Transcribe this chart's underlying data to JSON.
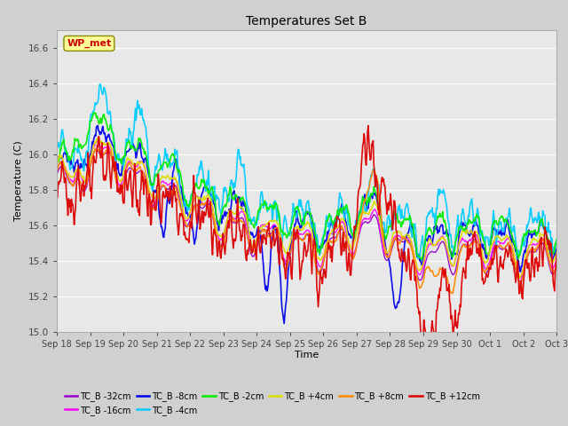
{
  "title": "Temperatures Set B",
  "xlabel": "Time",
  "ylabel": "Temperature (C)",
  "ylim": [
    15.0,
    16.7
  ],
  "yticks": [
    15.0,
    15.2,
    15.4,
    15.6,
    15.8,
    16.0,
    16.2,
    16.4,
    16.6
  ],
  "plot_bg_color": "#e8e8e8",
  "fig_bg_color": "#d0d0d0",
  "wp_met_label": "WP_met",
  "wp_met_color": "#cc0000",
  "wp_met_bg": "#ffff99",
  "series": [
    {
      "label": "TC_B -32cm",
      "color": "#9900cc",
      "lw": 1.0
    },
    {
      "label": "TC_B -16cm",
      "color": "#ff00ff",
      "lw": 1.0
    },
    {
      "label": "TC_B -8cm",
      "color": "#0000ee",
      "lw": 1.2
    },
    {
      "label": "TC_B -4cm",
      "color": "#00ccff",
      "lw": 1.2
    },
    {
      "label": "TC_B -2cm",
      "color": "#00ee00",
      "lw": 1.2
    },
    {
      "label": "TC_B +4cm",
      "color": "#dddd00",
      "lw": 1.2
    },
    {
      "label": "TC_B +8cm",
      "color": "#ff8800",
      "lw": 1.2
    },
    {
      "label": "TC_B +12cm",
      "color": "#dd0000",
      "lw": 1.2
    }
  ],
  "n_points": 720,
  "x_start": 0,
  "x_end": 15,
  "xtick_positions": [
    0,
    1,
    2,
    3,
    4,
    5,
    6,
    7,
    8,
    9,
    10,
    11,
    12,
    13,
    14,
    15
  ],
  "xtick_labels": [
    "Sep 18",
    "Sep 19",
    "Sep 20",
    "Sep 21",
    "Sep 22",
    "Sep 23",
    "Sep 24",
    "Sep 25",
    "Sep 26",
    "Sep 27",
    "Sep 28",
    "Sep 29",
    "Sep 30",
    "Oct 1",
    "Oct 2",
    "Oct 3"
  ]
}
